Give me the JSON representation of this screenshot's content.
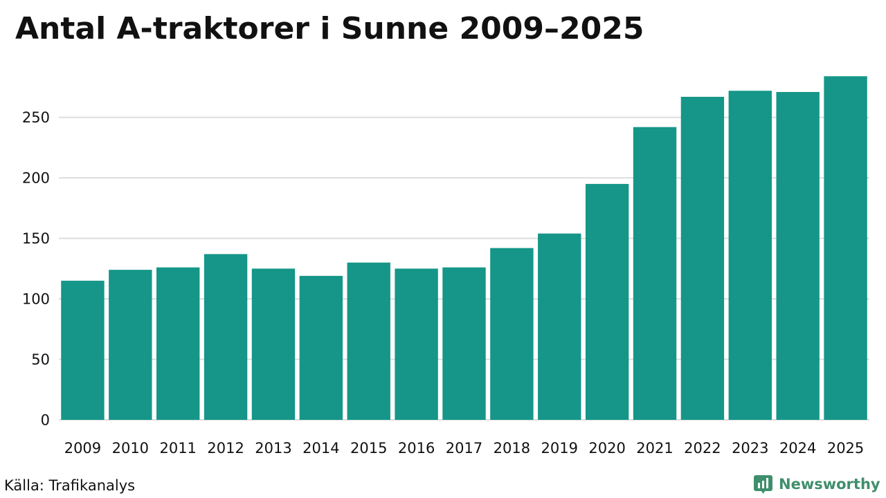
{
  "title": "Antal A-traktorer i Sunne 2009–2025",
  "source": "Källa: Trafikanalys",
  "brand": {
    "name": "Newsworthy",
    "icon": "newsworthy-logo-icon",
    "color": "#3f8f6c"
  },
  "colors": {
    "bar": "#159688",
    "grid": "#dddddd"
  },
  "chart_data": {
    "type": "bar",
    "title": "Antal A-traktorer i Sunne 2009–2025",
    "xlabel": "",
    "ylabel": "",
    "categories": [
      "2009",
      "2010",
      "2011",
      "2012",
      "2013",
      "2014",
      "2015",
      "2016",
      "2017",
      "2018",
      "2019",
      "2020",
      "2021",
      "2022",
      "2023",
      "2024",
      "2025"
    ],
    "values": [
      115,
      124,
      126,
      137,
      125,
      119,
      130,
      125,
      126,
      142,
      154,
      195,
      242,
      267,
      272,
      271,
      284
    ],
    "ylim": [
      0,
      295
    ],
    "yticks": [
      0,
      50,
      100,
      150,
      200,
      250
    ],
    "grid": true,
    "legend": false
  }
}
